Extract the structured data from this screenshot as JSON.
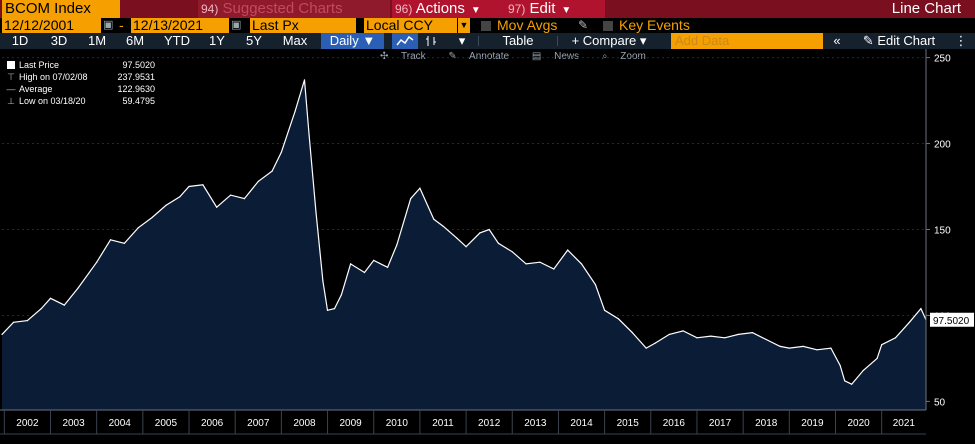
{
  "header": {
    "ticker": "BCOM Index",
    "suggested_num": "94)",
    "suggested_label": "Suggested Charts",
    "actions_num": "96)",
    "actions_label": "Actions",
    "edit_num": "97)",
    "edit_label": "Edit",
    "view_title": "Line Chart"
  },
  "selectors": {
    "start_date": "12/12/2001",
    "separator": "-",
    "end_date": "12/13/2021",
    "field": "Last Px",
    "currency": "Local CCY",
    "mov_avgs": "Mov Avgs",
    "key_events": "Key Events"
  },
  "toolbar": {
    "periods": [
      "1D",
      "3D",
      "1M",
      "6M",
      "YTD",
      "1Y",
      "5Y",
      "Max"
    ],
    "frequency": "Daily",
    "table": "Table",
    "compare": "Compare",
    "add_data_placeholder": "Add Data",
    "edit_chart": "Edit Chart"
  },
  "subtoolbar": {
    "track": "Track",
    "annotate": "Annotate",
    "news": "News",
    "zoom": "Zoom"
  },
  "legend": {
    "last_price_label": "Last Price",
    "last_price_value": "97.5020",
    "high_label": "High on 07/02/08",
    "high_value": "237.9531",
    "average_label": "Average",
    "average_value": "122.9630",
    "low_label": "Low on 03/18/20",
    "low_value": "59.4795"
  },
  "colors": {
    "accent_orange": "#f5a000",
    "title_bar": "#7a0f1f",
    "area_fill": "#0b1d36",
    "line": "#ffffff",
    "toolbar_bg": "#16212e",
    "active_blue": "#2a5fb5"
  },
  "chart_data": {
    "type": "area",
    "title": "BCOM Index",
    "series_name": "Last Price",
    "last_value_label": "97.5020",
    "ylim": [
      45,
      255
    ],
    "y_ticks": [
      50,
      100,
      150,
      200,
      250
    ],
    "xlim": [
      2001.95,
      2021.96
    ],
    "x_ticks": [
      "2002",
      "2003",
      "2004",
      "2005",
      "2006",
      "2007",
      "2008",
      "2009",
      "2010",
      "2011",
      "2012",
      "2013",
      "2014",
      "2015",
      "2016",
      "2017",
      "2018",
      "2019",
      "2020",
      "2021"
    ],
    "x": [
      2001.95,
      2002.2,
      2002.5,
      2002.8,
      2003.0,
      2003.3,
      2003.6,
      2004.0,
      2004.3,
      2004.6,
      2004.9,
      2005.2,
      2005.5,
      2005.8,
      2006.0,
      2006.3,
      2006.6,
      2006.9,
      2007.2,
      2007.5,
      2007.8,
      2008.0,
      2008.3,
      2008.5,
      2008.6,
      2008.75,
      2008.9,
      2009.0,
      2009.15,
      2009.3,
      2009.5,
      2009.8,
      2010.0,
      2010.3,
      2010.5,
      2010.8,
      2011.0,
      2011.3,
      2011.5,
      2011.8,
      2012.0,
      2012.3,
      2012.5,
      2012.7,
      2013.0,
      2013.3,
      2013.6,
      2013.9,
      2014.2,
      2014.5,
      2014.8,
      2015.0,
      2015.3,
      2015.6,
      2015.9,
      2016.1,
      2016.4,
      2016.7,
      2017.0,
      2017.3,
      2017.6,
      2017.9,
      2018.2,
      2018.5,
      2018.8,
      2019.0,
      2019.3,
      2019.6,
      2019.9,
      2020.1,
      2020.2,
      2020.35,
      2020.6,
      2020.9,
      2021.0,
      2021.3,
      2021.6,
      2021.85,
      2021.96
    ],
    "y": [
      89,
      96,
      97,
      104,
      110,
      106,
      116,
      131,
      144,
      142,
      151,
      157,
      164,
      169,
      175,
      176,
      163,
      170,
      168,
      178,
      184,
      195,
      219,
      237,
      205,
      160,
      120,
      103,
      104,
      112,
      130,
      125,
      132,
      128,
      141,
      168,
      174,
      156,
      152,
      145,
      140,
      148,
      150,
      142,
      137,
      130,
      131,
      127,
      138,
      130,
      118,
      103,
      98,
      90,
      81,
      84,
      89,
      91,
      87,
      88,
      87,
      89,
      90,
      86,
      82,
      81,
      82,
      80,
      81,
      71,
      62,
      60,
      68,
      75,
      83,
      87,
      96,
      104,
      97.5
    ]
  }
}
